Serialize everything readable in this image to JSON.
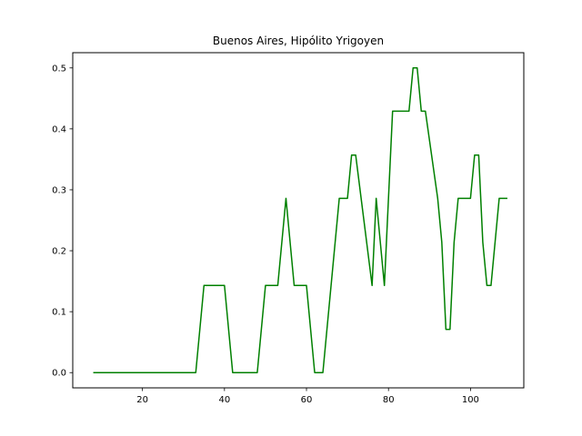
{
  "chart_data": {
    "type": "line",
    "title": "Buenos Aires, Hipólito Yrigoyen",
    "xlabel": "",
    "ylabel": "",
    "xlim": [
      3,
      113
    ],
    "ylim": [
      -0.025,
      0.525
    ],
    "xticks": [
      20,
      40,
      60,
      80,
      100
    ],
    "yticks": [
      0.0,
      0.1,
      0.2,
      0.3,
      0.4,
      0.5
    ],
    "xtick_labels": [
      "20",
      "40",
      "60",
      "80",
      "100"
    ],
    "ytick_labels": [
      "0.0",
      "0.1",
      "0.2",
      "0.3",
      "0.4",
      "0.5"
    ],
    "grid": false,
    "legend": "none",
    "series": [
      {
        "color": "#008000",
        "x": [
          8,
          33,
          35,
          40,
          42,
          48,
          50,
          53,
          55,
          57,
          60,
          62,
          64,
          68,
          70,
          71,
          72,
          74,
          76,
          77,
          79,
          81,
          85,
          86,
          87,
          88,
          89,
          92,
          93,
          94,
          95,
          96,
          97,
          100,
          101,
          102,
          103,
          104,
          105,
          107,
          109
        ],
        "y": [
          0.0,
          0.0,
          0.143,
          0.143,
          0.0,
          0.0,
          0.143,
          0.143,
          0.286,
          0.143,
          0.143,
          0.0,
          0.0,
          0.286,
          0.286,
          0.357,
          0.357,
          0.25,
          0.143,
          0.286,
          0.143,
          0.429,
          0.429,
          0.5,
          0.5,
          0.429,
          0.429,
          0.286,
          0.214,
          0.071,
          0.071,
          0.214,
          0.286,
          0.286,
          0.357,
          0.357,
          0.214,
          0.143,
          0.143,
          0.286,
          0.286
        ]
      }
    ]
  }
}
